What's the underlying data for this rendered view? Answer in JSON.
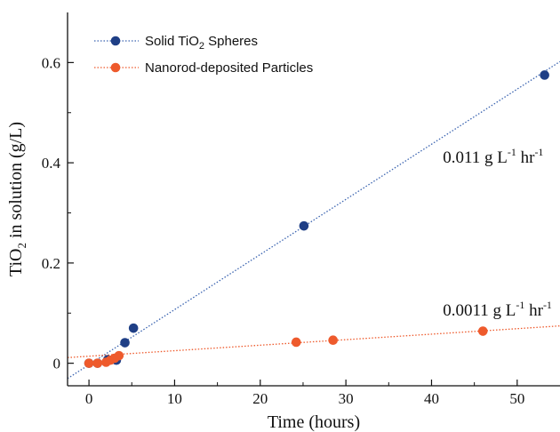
{
  "chart_data": {
    "type": "scatter",
    "xlabel": "Time  (hours)",
    "ylabel": "TiO₂ in solution (g/L)",
    "xlim": [
      -2.5,
      55
    ],
    "ylim": [
      -0.045,
      0.7
    ],
    "x_ticks": [
      0,
      10,
      20,
      30,
      40,
      50
    ],
    "y_ticks": [
      0,
      0.2,
      0.4,
      0.6
    ],
    "x_tick_labels": [
      "0",
      "10",
      "20",
      "30",
      "40",
      "50"
    ],
    "y_tick_labels": [
      "0",
      "0.2",
      "0.4",
      "0.6"
    ],
    "grid": false,
    "legend_position": "top-left",
    "series": [
      {
        "name": "Solid TiO₂ Spheres",
        "color": "#1f3f86",
        "line_color": "#3b64b0",
        "points": [
          {
            "x": 0,
            "y": 0.0
          },
          {
            "x": 1.0,
            "y": 0.0
          },
          {
            "x": 2.2,
            "y": 0.007
          },
          {
            "x": 3.2,
            "y": 0.006
          },
          {
            "x": 4.2,
            "y": 0.041
          },
          {
            "x": 5.2,
            "y": 0.07
          },
          {
            "x": 25.1,
            "y": 0.274
          },
          {
            "x": 53.2,
            "y": 0.575
          }
        ],
        "fit": {
          "slope": 0.011,
          "intercept": -0.003
        },
        "annotation": {
          "prefix": "0.011 g L",
          "sup1": "-1",
          "mid": " hr",
          "sup2": "-1",
          "x": 38,
          "y": 0.4
        }
      },
      {
        "name": "Nanorod-deposited Particles",
        "color": "#ee5a2c",
        "line_color": "#ee5a2c",
        "points": [
          {
            "x": 0,
            "y": 0.0
          },
          {
            "x": 1.0,
            "y": 0.0
          },
          {
            "x": 2.0,
            "y": 0.002
          },
          {
            "x": 2.5,
            "y": 0.006
          },
          {
            "x": 3.0,
            "y": 0.01
          },
          {
            "x": 3.5,
            "y": 0.015
          },
          {
            "x": 24.2,
            "y": 0.042
          },
          {
            "x": 28.5,
            "y": 0.046
          },
          {
            "x": 46.0,
            "y": 0.064
          }
        ],
        "fit": {
          "slope": 0.0011,
          "intercept": 0.014
        },
        "annotation": {
          "prefix": "0.0011 g L",
          "sup1": "-1",
          "mid": " hr",
          "sup2": "-1",
          "x": 38,
          "y": 0.095
        }
      }
    ]
  }
}
